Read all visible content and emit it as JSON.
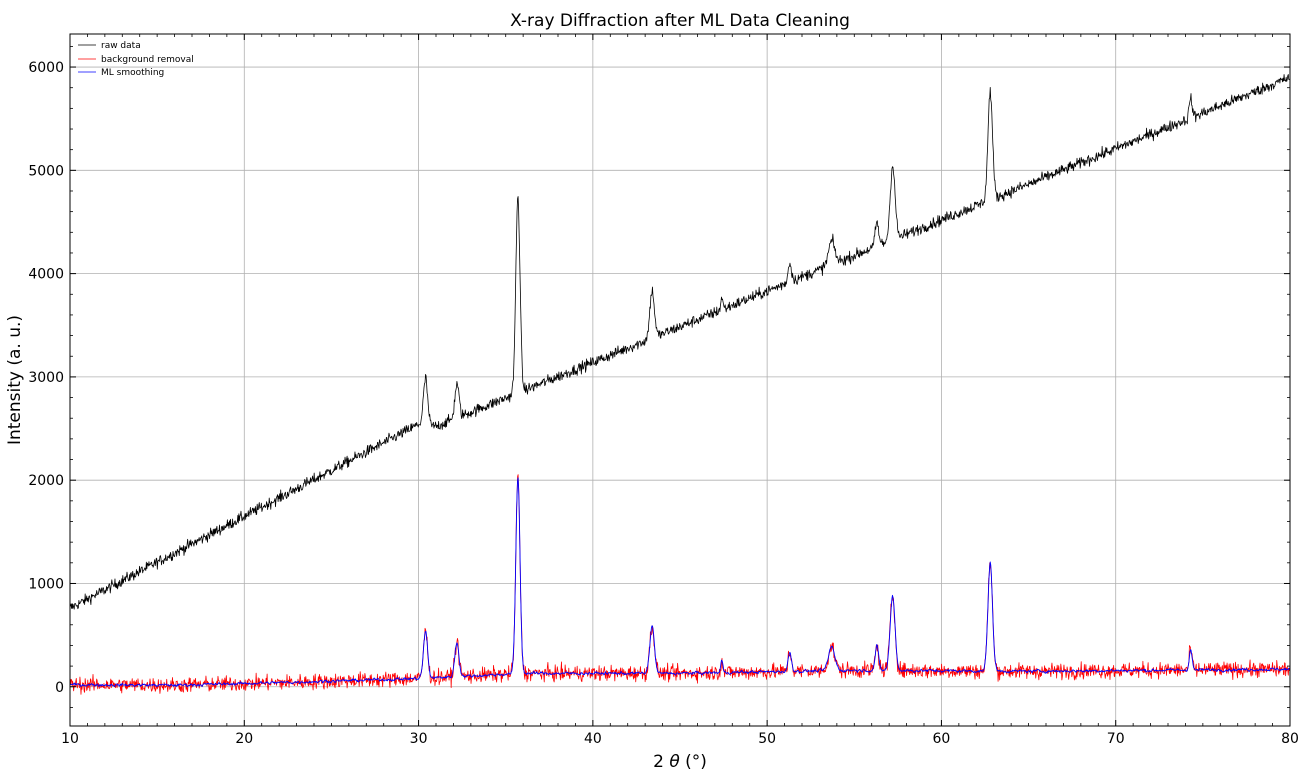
{
  "chart_data": {
    "type": "line",
    "title": "X-ray Diffraction after ML Data Cleaning",
    "xlabel_prefix": "2 ",
    "xlabel_symbol": "θ",
    "xlabel_suffix": " (°)",
    "ylabel": "Intensity (a. u.)",
    "xlim": [
      10,
      80
    ],
    "ylim": [
      -380,
      6320
    ],
    "xticks": [
      10,
      20,
      30,
      40,
      50,
      60,
      70,
      80
    ],
    "yticks": [
      0,
      1000,
      2000,
      3000,
      4000,
      5000,
      6000
    ],
    "grid": true,
    "legend_position": "top-left",
    "colors": {
      "raw": "#000000",
      "background": "#ff0000",
      "smoothing": "#0000ff",
      "grid": "#b0b0b0"
    },
    "series": [
      {
        "name": "raw data",
        "baseline": {
          "x": [
            10,
            30,
            31,
            80
          ],
          "y": [
            760,
            2540,
            2520,
            5900
          ]
        },
        "noise": 55
      },
      {
        "name": "background removal",
        "baseline": {
          "x": [
            10,
            16,
            22,
            30,
            36,
            45,
            55,
            65,
            80
          ],
          "y": [
            20,
            15,
            40,
            80,
            130,
            130,
            160,
            150,
            170
          ]
        },
        "noise": 75
      },
      {
        "name": "ML smoothing",
        "baseline": {
          "x": [
            10,
            16,
            22,
            30,
            36,
            45,
            55,
            65,
            80
          ],
          "y": [
            20,
            15,
            40,
            80,
            130,
            130,
            160,
            150,
            170
          ]
        },
        "noise": 30
      }
    ],
    "peaks": [
      {
        "x": 30.4,
        "height": 450,
        "width": 0.12
      },
      {
        "x": 32.2,
        "height": 330,
        "width": 0.12
      },
      {
        "x": 35.7,
        "height": 1900,
        "width": 0.12
      },
      {
        "x": 43.4,
        "height": 460,
        "width": 0.13
      },
      {
        "x": 47.4,
        "height": 120,
        "width": 0.06
      },
      {
        "x": 51.3,
        "height": 180,
        "width": 0.1
      },
      {
        "x": 53.7,
        "height": 230,
        "width": 0.18
      },
      {
        "x": 56.3,
        "height": 230,
        "width": 0.1
      },
      {
        "x": 57.2,
        "height": 720,
        "width": 0.14
      },
      {
        "x": 62.8,
        "height": 1050,
        "width": 0.13
      },
      {
        "x": 74.3,
        "height": 200,
        "width": 0.08
      }
    ]
  }
}
